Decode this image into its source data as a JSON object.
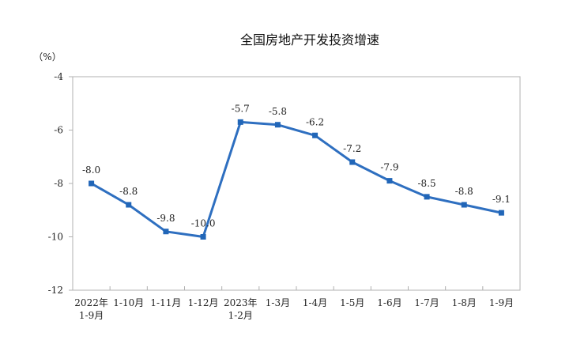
{
  "chart_data": {
    "type": "line",
    "title": "全国房地产开发投资增速",
    "ylabel": "（%）",
    "xlabel": "",
    "ylim": [
      -12,
      -4
    ],
    "yticks": [
      "-4",
      "-6",
      "-8",
      "-10",
      "-12"
    ],
    "ytick_values": [
      -4,
      -6,
      -8,
      -10,
      -12
    ],
    "categories": [
      [
        "2022年",
        "1-9月"
      ],
      [
        "1-10月"
      ],
      [
        "1-11月"
      ],
      [
        "1-12月"
      ],
      [
        "2023年",
        "1-2月"
      ],
      [
        "1-3月"
      ],
      [
        "1-4月"
      ],
      [
        "1-5月"
      ],
      [
        "1-6月"
      ],
      [
        "1-7月"
      ],
      [
        "1-8月"
      ],
      [
        "1-9月"
      ]
    ],
    "values": [
      -8.0,
      -8.8,
      -9.8,
      -10.0,
      -5.7,
      -5.8,
      -6.2,
      -7.2,
      -7.9,
      -8.5,
      -8.8,
      -9.1
    ],
    "data_labels": [
      "-8.0",
      "-8.8",
      "-9.8",
      "-10.0",
      "-5.7",
      "-5.8",
      "-6.2",
      "-7.2",
      "-7.9",
      "-8.5",
      "-8.8",
      "-9.1"
    ],
    "grid": false,
    "legend": "none",
    "colors": {
      "line": "#2e6fc0",
      "marker": "#2166b8",
      "axis": "#b0b0b0"
    }
  }
}
